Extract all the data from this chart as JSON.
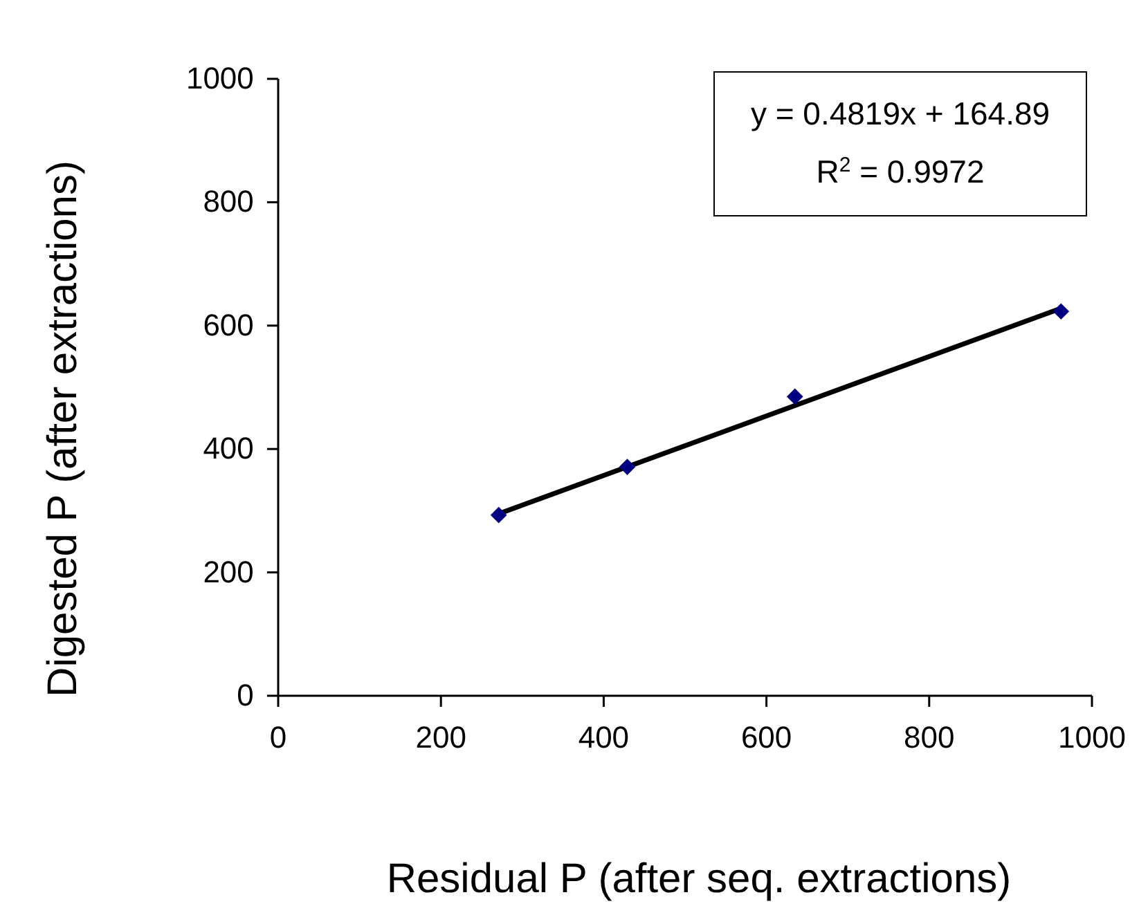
{
  "chart_data": {
    "type": "scatter",
    "xlabel": "Residual P (after seq. extractions)",
    "ylabel": "Digested P (after extractions)",
    "xlim": [
      0,
      1000
    ],
    "xticks": [
      0,
      200,
      400,
      600,
      800,
      1000
    ],
    "ylim": [
      0,
      1000
    ],
    "yticks": [
      0,
      200,
      400,
      600,
      800,
      1000
    ],
    "marker": "diamond",
    "grid": false,
    "series": [
      {
        "color": "#000080",
        "x": [
          271,
          429,
          635,
          962
        ],
        "values": [
          293,
          371,
          485,
          623
        ]
      },
      {
        "type": "line",
        "color": "#000000",
        "marker": "none",
        "x": [
          271,
          962
        ],
        "values": [
          295,
          628
        ]
      }
    ],
    "annotations": [
      "y = 0.4819x + 164.89",
      "R$^{2}$ = 0.9972"
    ]
  }
}
